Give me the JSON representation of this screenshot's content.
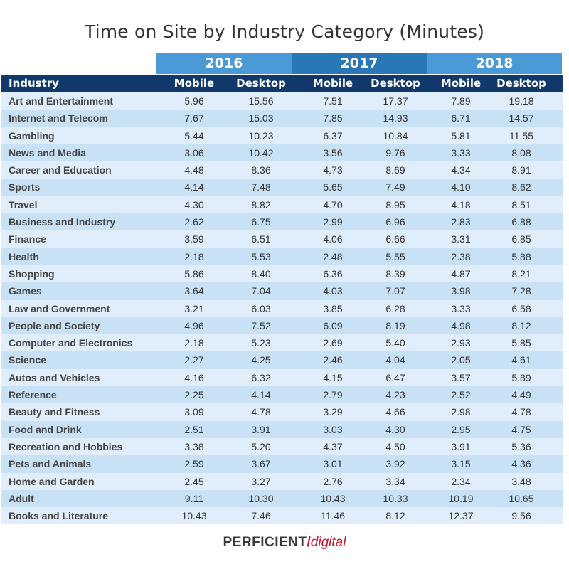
{
  "title": "Time on Site by Industry Category (Minutes)",
  "years": [
    "2016",
    "2017",
    "2018"
  ],
  "header": {
    "industry": "Industry",
    "mobile": "Mobile",
    "desktop": "Desktop"
  },
  "logo": {
    "part1": "PERFICIENT",
    "slash": "/",
    "part2": "digital"
  },
  "colors": {
    "header_dark": "#11386b",
    "year_light": "#4a9ad8",
    "year_dark": "#2a77b7",
    "row_light": "#dfeefa",
    "row_dark": "#c8e1f4",
    "brand_red": "#c8102e"
  },
  "chart_data": {
    "type": "table",
    "title": "Time on Site by Industry Category (Minutes)",
    "columns": [
      "Industry",
      "2016 Mobile",
      "2016 Desktop",
      "2017 Mobile",
      "2017 Desktop",
      "2018 Mobile",
      "2018 Desktop"
    ],
    "rows": [
      [
        "Art and Entertainment",
        "5.96",
        "15.56",
        "7.51",
        "17.37",
        "7.89",
        "19.18"
      ],
      [
        "Internet and Telecom",
        "7.67",
        "15.03",
        "7.85",
        "14.93",
        "6.71",
        "14.57"
      ],
      [
        "Gambling",
        "5.44",
        "10.23",
        "6.37",
        "10.84",
        "5.81",
        "11.55"
      ],
      [
        "News and Media",
        "3.06",
        "10.42",
        "3.56",
        "9.76",
        "3.33",
        "8.08"
      ],
      [
        "Career and Education",
        "4.48",
        "8.36",
        "4.73",
        "8.69",
        "4.34",
        "8.91"
      ],
      [
        "Sports",
        "4.14",
        "7.48",
        "5.65",
        "7.49",
        "4.10",
        "8.62"
      ],
      [
        "Travel",
        "4.30",
        "8.82",
        "4.70",
        "8.95",
        "4.18",
        "8.51"
      ],
      [
        "Business and Industry",
        "2.62",
        "6.75",
        "2.99",
        "6.96",
        "2.83",
        "6.88"
      ],
      [
        "Finance",
        "3.59",
        "6.51",
        "4.06",
        "6.66",
        "3.31",
        "6.85"
      ],
      [
        "Health",
        "2.18",
        "5.53",
        "2.48",
        "5.55",
        "2.38",
        "5.88"
      ],
      [
        "Shopping",
        "5.86",
        "8.40",
        "6.36",
        "8.39",
        "4.87",
        "8.21"
      ],
      [
        "Games",
        "3.64",
        "7.04",
        "4.03",
        "7.07",
        "3.98",
        "7.28"
      ],
      [
        "Law and Government",
        "3.21",
        "6.03",
        "3.85",
        "6.28",
        "3.33",
        "6.58"
      ],
      [
        "People and Society",
        "4.96",
        "7.52",
        "6.09",
        "8.19",
        "4.98",
        "8.12"
      ],
      [
        "Computer and Electronics",
        "2.18",
        "5.23",
        "2.69",
        "5.40",
        "2.93",
        "5.85"
      ],
      [
        "Science",
        "2.27",
        "4.25",
        "2.46",
        "4.04",
        "2.05",
        "4.61"
      ],
      [
        "Autos and Vehicles",
        "4.16",
        "6.32",
        "4.15",
        "6.47",
        "3.57",
        "5.89"
      ],
      [
        "Reference",
        "2.25",
        "4.14",
        "2.79",
        "4.23",
        "2.52",
        "4.49"
      ],
      [
        "Beauty and Fitness",
        "3.09",
        "4.78",
        "3.29",
        "4.66",
        "2.98",
        "4.78"
      ],
      [
        "Food and Drink",
        "2.51",
        "3.91",
        "3.03",
        "4.30",
        "2.95",
        "4.75"
      ],
      [
        "Recreation and Hobbies",
        "3.38",
        "5.20",
        "4.37",
        "4.50",
        "3.91",
        "5.36"
      ],
      [
        "Pets and Animals",
        "2.59",
        "3.67",
        "3.01",
        "3.92",
        "3.15",
        "4.36"
      ],
      [
        "Home and Garden",
        "2.45",
        "3.27",
        "2.76",
        "3.34",
        "2.34",
        "3.48"
      ],
      [
        "Adult",
        "9.11",
        "10.30",
        "10.43",
        "10.33",
        "10.19",
        "10.65"
      ],
      [
        "Books and Literature",
        "10.43",
        "7.46",
        "11.46",
        "8.12",
        "12.37",
        "9.56"
      ]
    ]
  }
}
